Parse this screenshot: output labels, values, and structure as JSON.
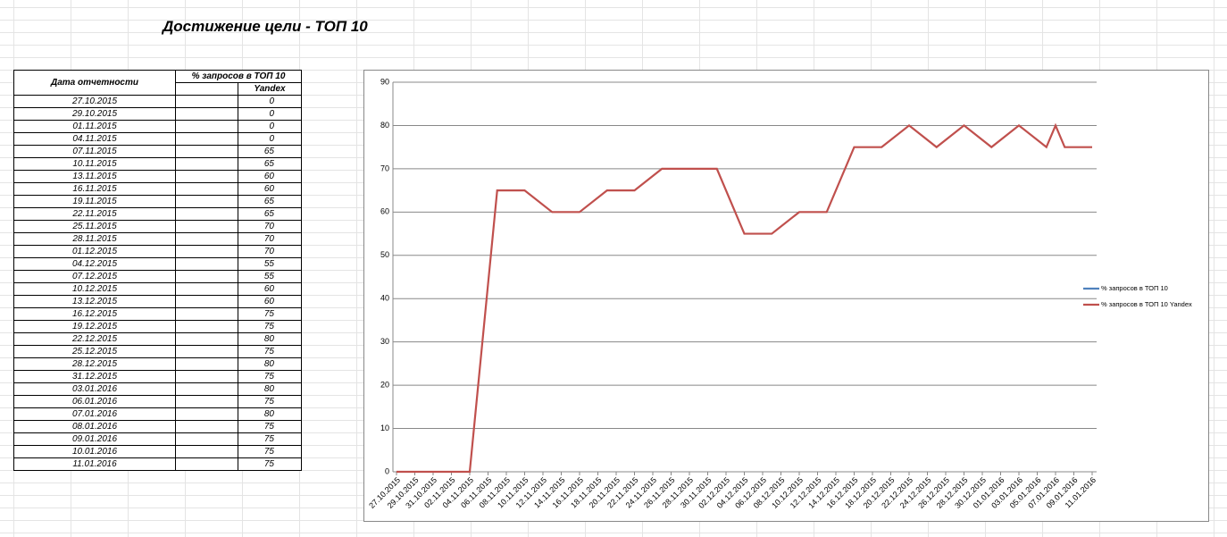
{
  "title": "Достижение цели - ТОП 10",
  "table": {
    "headers": [
      "Дата отчетности",
      "% запросов в ТОП 10",
      "Yandex"
    ]
  },
  "chart_data": {
    "type": "line",
    "x": [
      "27.10.2015",
      "29.10.2015",
      "01.11.2015",
      "04.11.2015",
      "07.11.2015",
      "10.11.2015",
      "13.11.2015",
      "16.11.2015",
      "19.11.2015",
      "22.11.2015",
      "25.11.2015",
      "28.11.2015",
      "01.12.2015",
      "04.12.2015",
      "07.12.2015",
      "10.12.2015",
      "13.12.2015",
      "16.12.2015",
      "19.12.2015",
      "22.12.2015",
      "25.12.2015",
      "28.12.2015",
      "31.12.2015",
      "03.01.2016",
      "06.01.2016",
      "07.01.2016",
      "08.01.2016",
      "09.01.2016",
      "10.01.2016",
      "11.01.2016"
    ],
    "series": [
      {
        "name": "% запросов в ТОП 10",
        "color": "#4f81bd",
        "values": [
          null,
          null,
          null,
          null,
          null,
          null,
          null,
          null,
          null,
          null,
          null,
          null,
          null,
          null,
          null,
          null,
          null,
          null,
          null,
          null,
          null,
          null,
          null,
          null,
          null,
          null,
          null,
          null,
          null,
          null
        ]
      },
      {
        "name": "% запросов в ТОП 10 Yandex",
        "color": "#c0504d",
        "values": [
          0,
          0,
          0,
          0,
          65,
          65,
          60,
          60,
          65,
          65,
          70,
          70,
          70,
          55,
          55,
          60,
          60,
          75,
          75,
          80,
          75,
          80,
          75,
          80,
          75,
          80,
          75,
          75,
          75,
          75
        ]
      }
    ],
    "xlim": [
      "27.10.2015",
      "11.01.2016"
    ],
    "xticks": [
      "27.10.2015",
      "29.10.2015",
      "31.10.2015",
      "02.11.2015",
      "04.11.2015",
      "06.11.2015",
      "08.11.2015",
      "10.11.2015",
      "12.11.2015",
      "14.11.2015",
      "16.11.2015",
      "18.11.2015",
      "20.11.2015",
      "22.11.2015",
      "24.11.2015",
      "26.11.2015",
      "28.11.2015",
      "30.11.2015",
      "02.12.2015",
      "04.12.2015",
      "06.12.2015",
      "08.12.2015",
      "10.12.2015",
      "12.12.2015",
      "14.12.2015",
      "16.12.2015",
      "18.12.2015",
      "20.12.2015",
      "22.12.2015",
      "24.12.2015",
      "26.12.2015",
      "28.12.2015",
      "30.12.2015",
      "01.01.2016",
      "03.01.2016",
      "05.01.2016",
      "07.01.2016",
      "09.01.2016",
      "11.01.2016"
    ],
    "ylim": [
      0,
      90
    ],
    "yticks": [
      0,
      10,
      20,
      30,
      40,
      50,
      60,
      70,
      80,
      90
    ],
    "grid": true,
    "legend": "right"
  }
}
